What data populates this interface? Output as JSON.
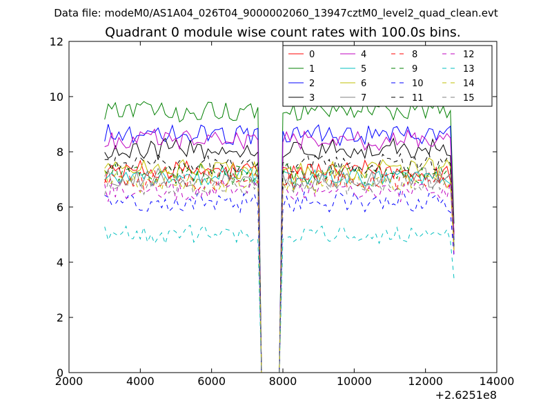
{
  "chart_data": {
    "type": "line",
    "supertitle": "Data file: modeM0/AS1A04_026T04_9000002060_13947cztM0_level2_quad_clean.evt",
    "title": "Quadrant 0 module wise count rates with 100.0s bins.",
    "xlabel": "",
    "ylabel": "",
    "x_offset_label": "+2.6251e8",
    "xlim": [
      2000,
      14000
    ],
    "ylim": [
      0,
      12
    ],
    "xticks": [
      2000,
      4000,
      6000,
      8000,
      10000,
      12000,
      14000
    ],
    "xtick_labels": [
      "2000",
      "4000",
      "6000",
      "8000",
      "10000",
      "12000",
      "14000"
    ],
    "yticks": [
      0,
      2,
      4,
      6,
      8,
      10,
      12
    ],
    "ytick_labels": [
      "0",
      "2",
      "4",
      "6",
      "8",
      "10",
      "12"
    ],
    "gap": {
      "drop_start": 7300,
      "zero_from": 7400,
      "zero_to": 7900,
      "rise_end": 8000
    },
    "x_range": [
      3000,
      12800
    ],
    "legend": {
      "position": "top-right",
      "columns": 4
    },
    "series": [
      {
        "name": "0",
        "color": "#ff0000",
        "dash": "solid",
        "mean": 7.3,
        "noise": 0.35,
        "end": 5.0
      },
      {
        "name": "1",
        "color": "#007f00",
        "dash": "solid",
        "mean": 9.5,
        "noise": 0.35,
        "end": 5.4
      },
      {
        "name": "2",
        "color": "#0000ff",
        "dash": "solid",
        "mean": 8.6,
        "noise": 0.35,
        "end": 4.8
      },
      {
        "name": "3",
        "color": "#000000",
        "dash": "solid",
        "mean": 8.1,
        "noise": 0.35,
        "end": 5.0
      },
      {
        "name": "4",
        "color": "#bf00bf",
        "dash": "solid",
        "mean": 8.4,
        "noise": 0.35,
        "end": 5.0
      },
      {
        "name": "5",
        "color": "#00bfbf",
        "dash": "solid",
        "mean": 7.1,
        "noise": 0.35,
        "end": 4.6
      },
      {
        "name": "6",
        "color": "#bfbf00",
        "dash": "solid",
        "mean": 7.4,
        "noise": 0.35,
        "end": 4.6
      },
      {
        "name": "7",
        "color": "#808080",
        "dash": "solid",
        "mean": 7.0,
        "noise": 0.35,
        "end": 4.6
      },
      {
        "name": "8",
        "color": "#ff0000",
        "dash": "dashed",
        "mean": 7.0,
        "noise": 0.35,
        "end": 4.4
      },
      {
        "name": "9",
        "color": "#007f00",
        "dash": "dashed",
        "mean": 7.2,
        "noise": 0.35,
        "end": 4.5
      },
      {
        "name": "10",
        "color": "#0000ff",
        "dash": "dashed",
        "mean": 6.2,
        "noise": 0.35,
        "end": 4.2
      },
      {
        "name": "11",
        "color": "#000000",
        "dash": "dashed",
        "mean": 7.6,
        "noise": 0.35,
        "end": 4.6
      },
      {
        "name": "12",
        "color": "#bf00bf",
        "dash": "dashed",
        "mean": 6.6,
        "noise": 0.35,
        "end": 4.3
      },
      {
        "name": "13",
        "color": "#00bfbf",
        "dash": "dashed",
        "mean": 5.0,
        "noise": 0.3,
        "end": 3.4
      },
      {
        "name": "14",
        "color": "#bfbf00",
        "dash": "dashed",
        "mean": 6.9,
        "noise": 0.35,
        "end": 4.4
      },
      {
        "name": "15",
        "color": "#808080",
        "dash": "dashed",
        "mean": 6.8,
        "noise": 0.35,
        "end": 4.4
      }
    ]
  }
}
